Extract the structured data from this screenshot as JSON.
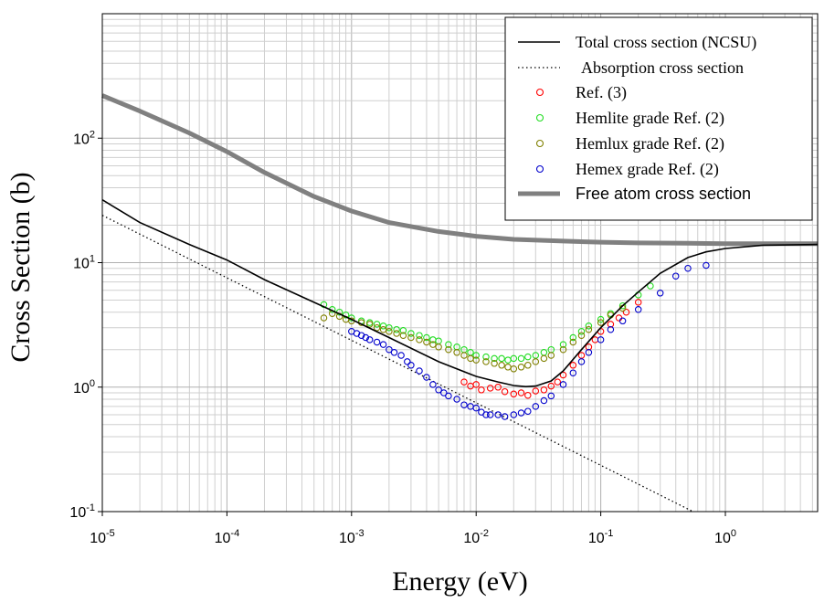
{
  "chart_data": {
    "type": "scatter",
    "xlabel": "Energy (eV)",
    "ylabel": "Cross Section (b)",
    "x_scale": "log",
    "y_scale": "log",
    "xlim": [
      1e-05,
      5.5
    ],
    "ylim": [
      0.1,
      1000
    ],
    "grid": true,
    "legend_position": "top-right",
    "x_ticks": [
      {
        "base": "10",
        "exp": "-5",
        "value": 1e-05
      },
      {
        "base": "10",
        "exp": "-4",
        "value": 0.0001
      },
      {
        "base": "10",
        "exp": "-3",
        "value": 0.001
      },
      {
        "base": "10",
        "exp": "-2",
        "value": 0.01
      },
      {
        "base": "10",
        "exp": "-1",
        "value": 0.1
      },
      {
        "base": "10",
        "exp": "0",
        "value": 1
      }
    ],
    "y_ticks": [
      {
        "base": "10",
        "exp": "-1",
        "value": 0.1
      },
      {
        "base": "10",
        "exp": "0",
        "value": 1
      },
      {
        "base": "10",
        "exp": "1",
        "value": 10
      },
      {
        "base": "10",
        "exp": "2",
        "value": 100
      }
    ],
    "series": [
      {
        "name": "Total cross section (NCSU)",
        "kind": "line",
        "color": "#000000",
        "style": "solid",
        "x": [
          1e-05,
          2e-05,
          5e-05,
          0.0001,
          0.0002,
          0.0005,
          0.001,
          0.002,
          0.005,
          0.01,
          0.015,
          0.02,
          0.025,
          0.03,
          0.04,
          0.05,
          0.07,
          0.1,
          0.15,
          0.2,
          0.3,
          0.5,
          0.7,
          1,
          2,
          5.5
        ],
        "y": [
          32,
          21,
          14,
          10.5,
          7.3,
          4.8,
          3.5,
          2.5,
          1.6,
          1.22,
          1.1,
          1.03,
          1.01,
          1.02,
          1.12,
          1.35,
          2.0,
          3.0,
          4.5,
          5.8,
          8.2,
          11,
          12.2,
          13,
          13.8,
          14
        ]
      },
      {
        "name": "Absorption cross section",
        "kind": "line",
        "color": "#000000",
        "style": "dotted",
        "x": [
          1e-05,
          0.55
        ],
        "y": [
          24,
          0.1
        ]
      },
      {
        "name": "Free atom cross section",
        "kind": "line",
        "color": "#808080",
        "style": "thick",
        "x": [
          1e-05,
          2e-05,
          5e-05,
          0.0001,
          0.0002,
          0.0005,
          0.001,
          0.002,
          0.005,
          0.01,
          0.02,
          0.05,
          0.1,
          0.2,
          0.5,
          1,
          2,
          5.5
        ],
        "y": [
          220,
          165,
          110,
          78,
          53,
          34,
          26,
          21,
          17.8,
          16.3,
          15.4,
          14.9,
          14.6,
          14.4,
          14.3,
          14.2,
          14.2,
          14.2
        ]
      },
      {
        "name": "Ref. (3)",
        "kind": "scatter",
        "color": "#ff0000",
        "x": [
          0.008,
          0.009,
          0.01,
          0.011,
          0.013,
          0.015,
          0.017,
          0.02,
          0.023,
          0.026,
          0.03,
          0.035,
          0.04,
          0.045,
          0.05,
          0.06,
          0.07,
          0.08,
          0.09,
          0.1,
          0.12,
          0.14,
          0.16,
          0.2
        ],
        "y": [
          1.1,
          1.02,
          1.05,
          0.95,
          0.98,
          1.0,
          0.92,
          0.88,
          0.9,
          0.86,
          0.93,
          0.95,
          1.02,
          1.1,
          1.25,
          1.5,
          1.8,
          2.1,
          2.4,
          2.8,
          3.2,
          3.6,
          4.0,
          4.8
        ]
      },
      {
        "name": "Hemlite grade Ref. (2)",
        "kind": "scatter",
        "color": "#22dd22",
        "x": [
          0.0006,
          0.0007,
          0.0008,
          0.0009,
          0.001,
          0.0012,
          0.0014,
          0.0016,
          0.0018,
          0.002,
          0.0023,
          0.0026,
          0.003,
          0.0035,
          0.004,
          0.0045,
          0.005,
          0.006,
          0.007,
          0.008,
          0.009,
          0.01,
          0.012,
          0.014,
          0.016,
          0.018,
          0.02,
          0.023,
          0.026,
          0.03,
          0.035,
          0.04,
          0.05,
          0.06,
          0.07,
          0.08,
          0.1,
          0.12,
          0.15,
          0.2,
          0.25
        ],
        "y": [
          4.6,
          4.2,
          4.0,
          3.8,
          3.6,
          3.4,
          3.3,
          3.2,
          3.1,
          3.0,
          2.9,
          2.85,
          2.7,
          2.6,
          2.5,
          2.4,
          2.35,
          2.2,
          2.1,
          2.0,
          1.9,
          1.8,
          1.75,
          1.7,
          1.7,
          1.65,
          1.7,
          1.7,
          1.75,
          1.8,
          1.9,
          2.0,
          2.2,
          2.5,
          2.8,
          3.1,
          3.5,
          3.9,
          4.5,
          5.5,
          6.5
        ]
      },
      {
        "name": "Hemlux grade  Ref. (2)",
        "kind": "scatter",
        "color": "#808000",
        "x": [
          0.0006,
          0.0007,
          0.0008,
          0.0009,
          0.001,
          0.0012,
          0.0014,
          0.0016,
          0.0018,
          0.002,
          0.0023,
          0.0026,
          0.003,
          0.0035,
          0.004,
          0.0045,
          0.005,
          0.006,
          0.007,
          0.008,
          0.009,
          0.01,
          0.012,
          0.014,
          0.016,
          0.018,
          0.02,
          0.023,
          0.026,
          0.03,
          0.035,
          0.04,
          0.05,
          0.06,
          0.07,
          0.08,
          0.1,
          0.12,
          0.15
        ],
        "y": [
          3.6,
          3.9,
          3.7,
          3.5,
          3.4,
          3.3,
          3.2,
          3.0,
          2.9,
          2.8,
          2.7,
          2.6,
          2.5,
          2.4,
          2.3,
          2.2,
          2.1,
          2.0,
          1.9,
          1.8,
          1.7,
          1.65,
          1.6,
          1.55,
          1.5,
          1.45,
          1.4,
          1.45,
          1.5,
          1.6,
          1.7,
          1.8,
          2.0,
          2.3,
          2.6,
          2.9,
          3.3,
          3.8,
          4.3
        ]
      },
      {
        "name": "Hemex grade   Ref. (2)",
        "kind": "scatter",
        "color": "#0000cc",
        "x": [
          0.001,
          0.0011,
          0.0012,
          0.0013,
          0.0014,
          0.0016,
          0.0018,
          0.002,
          0.0022,
          0.0025,
          0.0028,
          0.003,
          0.0035,
          0.004,
          0.0045,
          0.005,
          0.0055,
          0.006,
          0.007,
          0.008,
          0.009,
          0.01,
          0.011,
          0.012,
          0.013,
          0.015,
          0.017,
          0.02,
          0.023,
          0.026,
          0.03,
          0.035,
          0.04,
          0.05,
          0.06,
          0.07,
          0.08,
          0.1,
          0.12,
          0.15,
          0.2,
          0.3,
          0.4,
          0.5,
          0.7
        ],
        "y": [
          2.8,
          2.7,
          2.6,
          2.5,
          2.4,
          2.3,
          2.2,
          2.0,
          1.9,
          1.8,
          1.6,
          1.5,
          1.35,
          1.2,
          1.05,
          0.95,
          0.9,
          0.85,
          0.8,
          0.72,
          0.7,
          0.68,
          0.63,
          0.6,
          0.6,
          0.6,
          0.58,
          0.6,
          0.62,
          0.64,
          0.7,
          0.78,
          0.85,
          1.05,
          1.3,
          1.6,
          1.9,
          2.4,
          2.9,
          3.4,
          4.2,
          5.7,
          7.8,
          9.0,
          9.5
        ]
      }
    ]
  }
}
